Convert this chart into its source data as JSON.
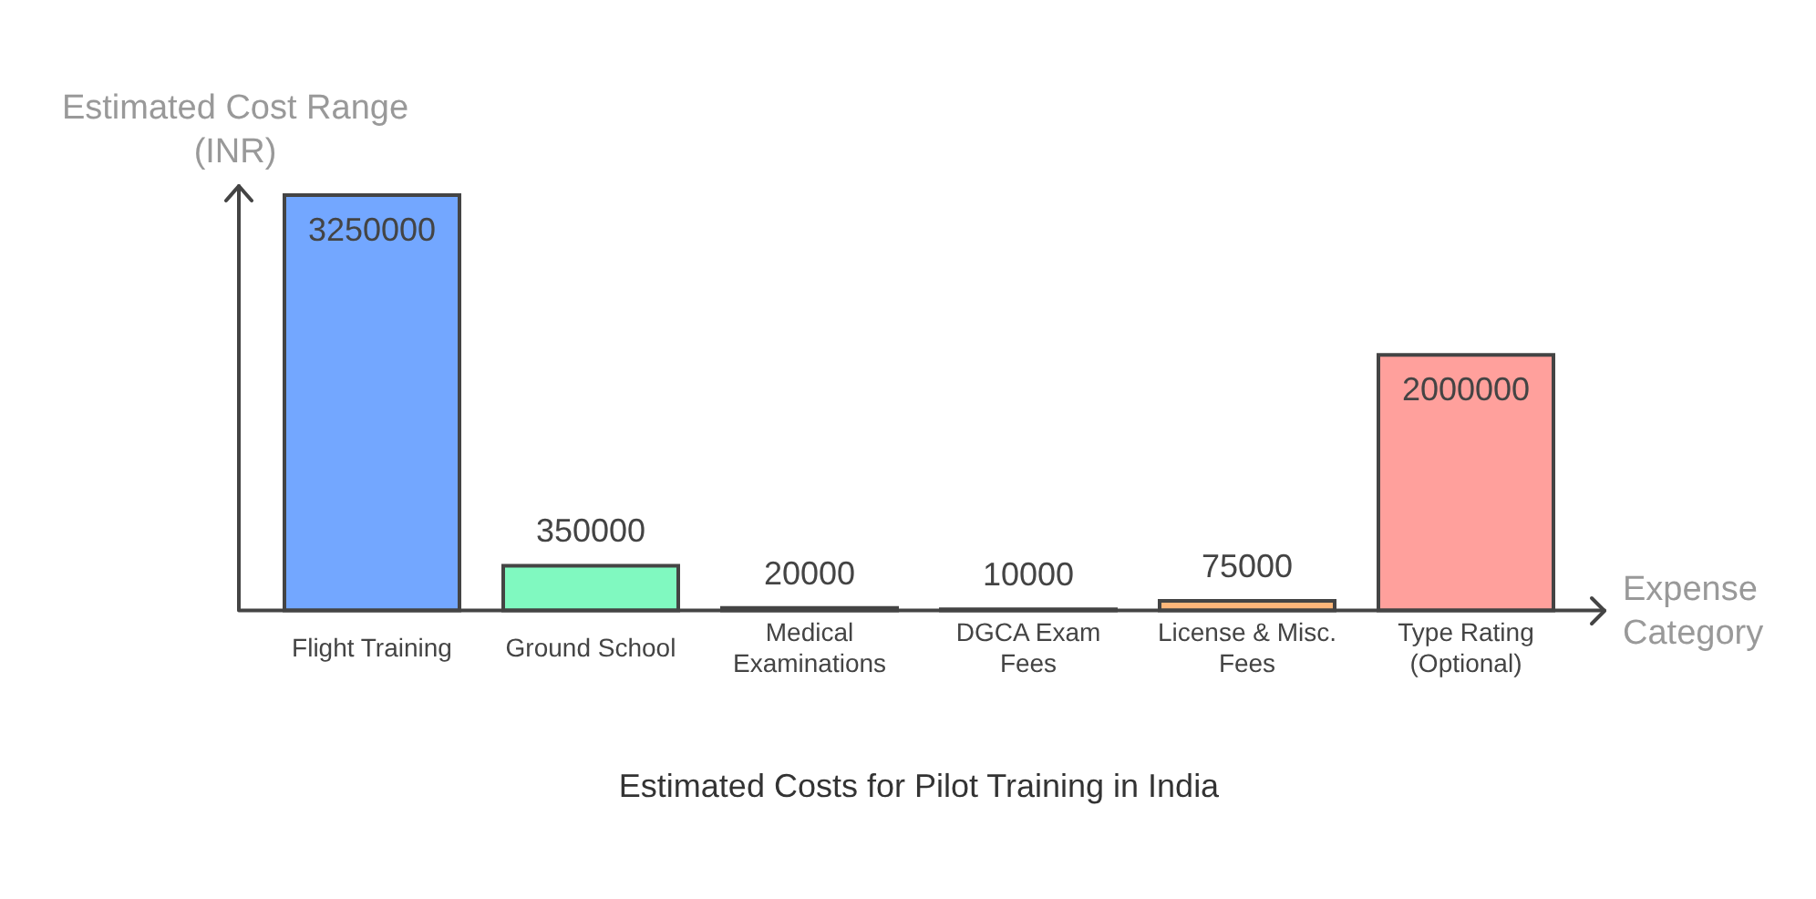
{
  "chart_data": {
    "type": "bar",
    "title": "Estimated Costs for Pilot Training in India",
    "xlabel": "Expense Category",
    "ylabel": "Estimated Cost Range (INR)",
    "categories": [
      "Flight Training",
      "Ground School",
      "Medical Examinations",
      "DGCA Exam Fees",
      "License & Misc. Fees",
      "Type Rating (Optional)"
    ],
    "values": [
      3250000,
      350000,
      20000,
      10000,
      75000,
      2000000
    ],
    "colors": [
      "#73a7ff",
      "#80f9c0",
      "#b99cf0",
      "#f5e37a",
      "#ffb77a",
      "#ffa09c"
    ],
    "data_labels": true,
    "grid": false,
    "legend": false,
    "tick_labels": "x"
  }
}
